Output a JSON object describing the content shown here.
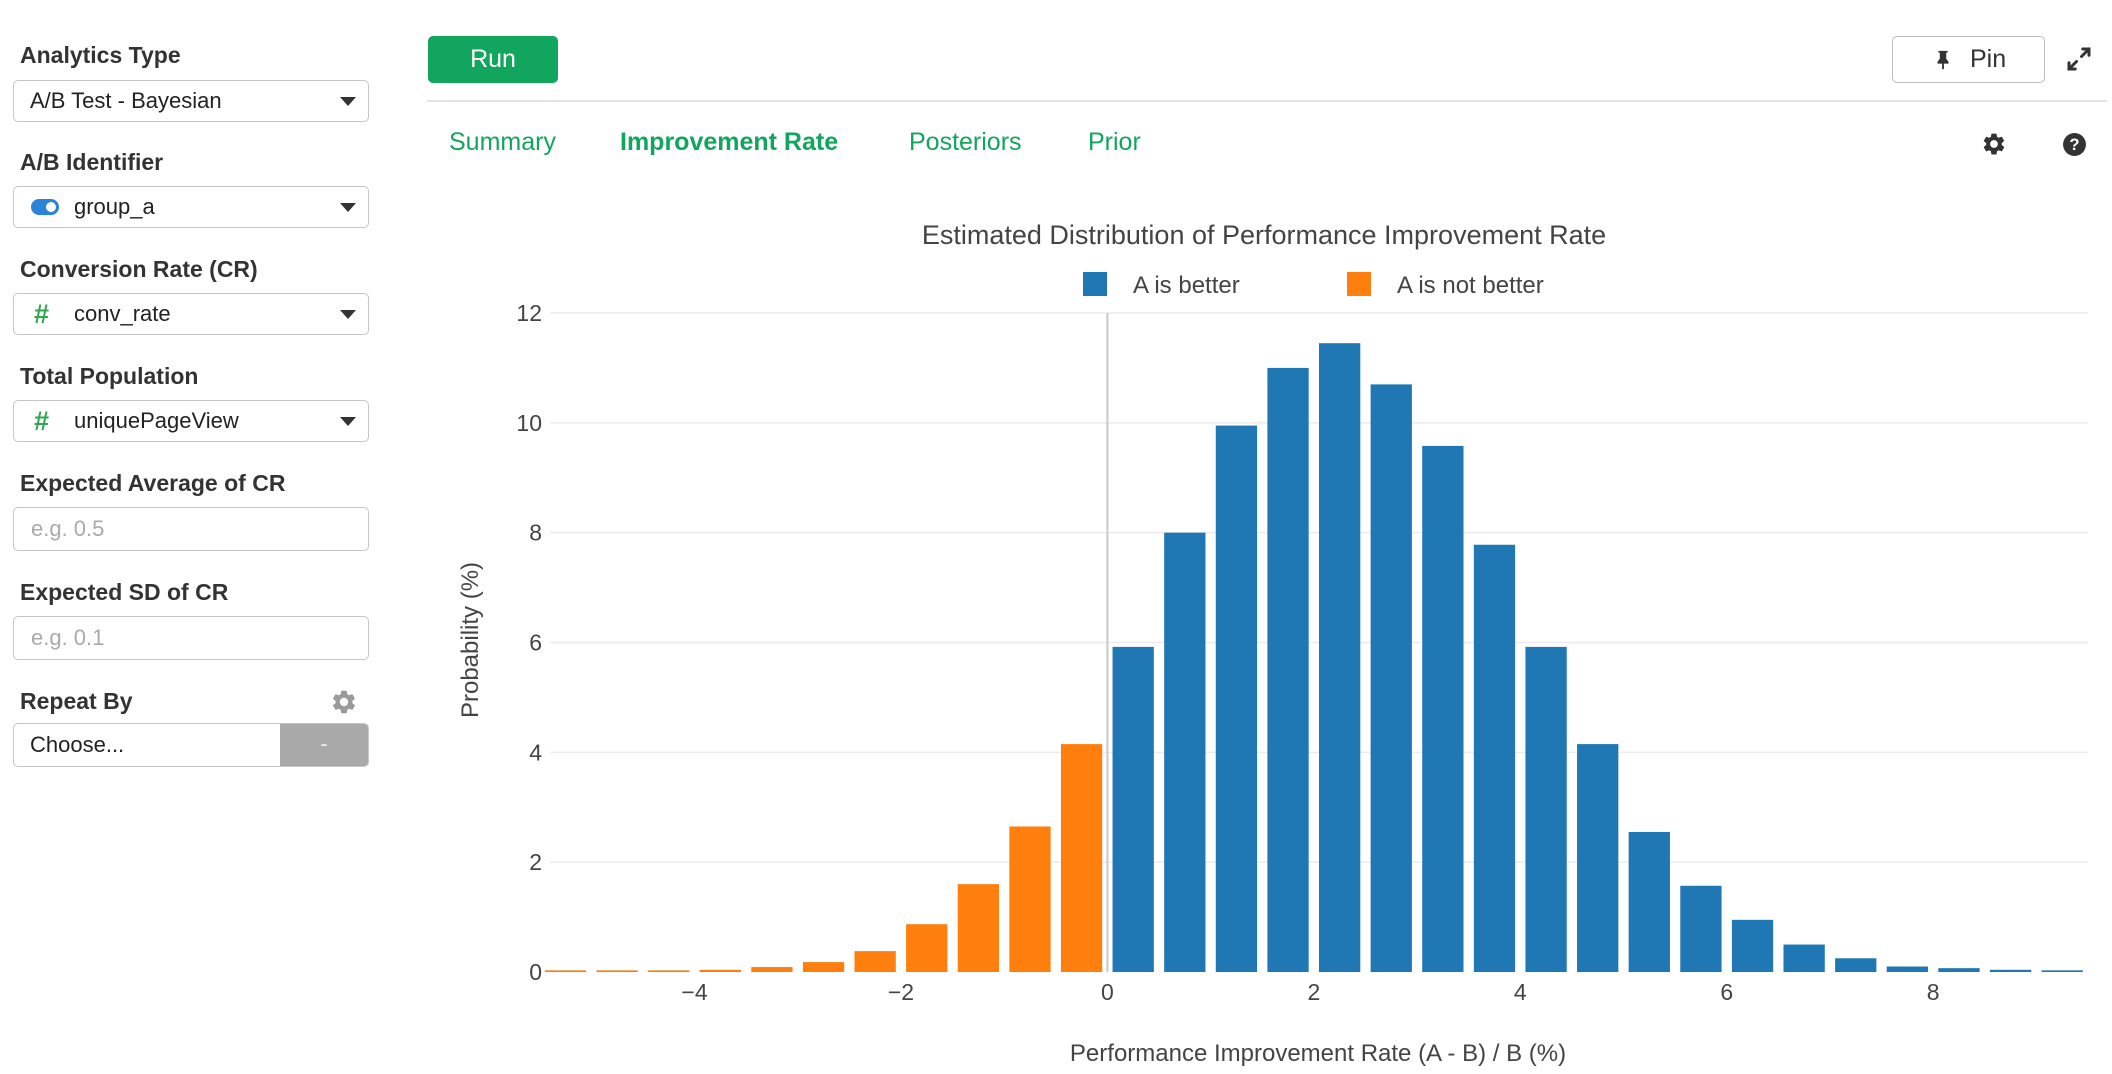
{
  "sidebar": {
    "analytics_type": {
      "label": "Analytics Type",
      "value": "A/B Test - Bayesian"
    },
    "ab_identifier": {
      "label": "A/B Identifier",
      "value": "group_a",
      "icon": "toggle-icon"
    },
    "conversion_rate": {
      "label": "Conversion Rate (CR)",
      "value": "conv_rate",
      "icon": "hash-icon"
    },
    "total_population": {
      "label": "Total Population",
      "value": "uniquePageView",
      "icon": "hash-icon"
    },
    "expected_average": {
      "label": "Expected Average of CR",
      "placeholder": "e.g. 0.5"
    },
    "expected_sd": {
      "label": "Expected SD of CR",
      "placeholder": "e.g. 0.1"
    },
    "repeat_by": {
      "label": "Repeat By",
      "value": "Choose...",
      "button": "-"
    }
  },
  "toolbar": {
    "run_label": "Run",
    "pin_label": "Pin"
  },
  "tabs": [
    {
      "label": "Summary",
      "active": false
    },
    {
      "label": "Improvement Rate",
      "active": true
    },
    {
      "label": "Posteriors",
      "active": false
    },
    {
      "label": "Prior",
      "active": false
    }
  ],
  "colors": {
    "accent": "#12a55d",
    "a_is_better": "#1f77b4",
    "a_is_not_better": "#ff7f0e"
  },
  "chart_data": {
    "type": "bar",
    "title": "Estimated Distribution of Performance Improvement Rate",
    "xlabel": "Performance Improvement Rate (A - B) / B (%)",
    "ylabel": "Probability (%)",
    "xlim": [
      -5.4,
      9.5
    ],
    "ylim": [
      0,
      12
    ],
    "x_ticks": [
      -4,
      -2,
      0,
      2,
      4,
      6,
      8
    ],
    "x_tick_labels": [
      "−4",
      "−2",
      "0",
      "2",
      "4",
      "6",
      "8"
    ],
    "y_ticks": [
      0,
      2,
      4,
      6,
      8,
      10,
      12
    ],
    "y_tick_labels": [
      "0",
      "2",
      "4",
      "6",
      "8",
      "10",
      "12"
    ],
    "grid": true,
    "legend_position": "top-center",
    "series": [
      {
        "name": "A is not better",
        "x": [
          -5.25,
          -4.75,
          -4.25,
          -3.75,
          -3.25,
          -2.75,
          -2.25,
          -1.75,
          -1.25,
          -0.75,
          -0.25
        ],
        "values": [
          0.03,
          0.03,
          0.03,
          0.04,
          0.09,
          0.18,
          0.38,
          0.87,
          1.6,
          2.65,
          4.15
        ]
      },
      {
        "name": "A is better",
        "x": [
          0.25,
          0.75,
          1.25,
          1.75,
          2.25,
          2.75,
          3.25,
          3.75,
          4.25,
          4.75,
          5.25,
          5.75,
          6.25,
          6.75,
          7.25,
          7.75,
          8.25,
          8.75,
          9.25
        ],
        "values": [
          5.92,
          8.0,
          9.95,
          11.0,
          11.45,
          10.7,
          9.58,
          7.78,
          5.92,
          4.15,
          2.55,
          1.57,
          0.95,
          0.5,
          0.25,
          0.1,
          0.07,
          0.04,
          0.03
        ]
      }
    ]
  }
}
